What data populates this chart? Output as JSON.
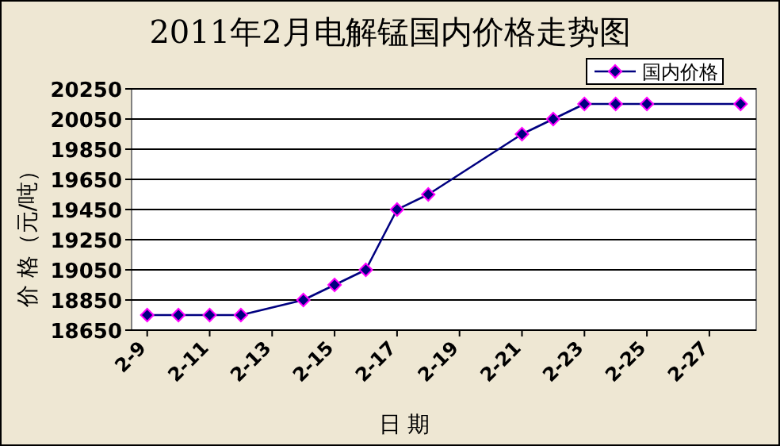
{
  "chart_data": {
    "type": "line",
    "title": "2011年2月电解锰国内价格走势图",
    "xlabel": "日    期",
    "ylabel": "价  格（元/吨）",
    "x": [
      "2011-02-09",
      "2011-02-10",
      "2011-02-11",
      "2011-02-12",
      "2011-02-14",
      "2011-02-15",
      "2011-02-16",
      "2011-02-17",
      "2011-02-18",
      "2011-02-21",
      "2011-02-22",
      "2011-02-23",
      "2011-02-24",
      "2011-02-25",
      "2011-02-28"
    ],
    "series": [
      {
        "name": "国内价格",
        "color": "#000080",
        "values": [
          18750,
          18750,
          18750,
          18750,
          18850,
          18950,
          19050,
          19450,
          19550,
          19950,
          20050,
          20150,
          20150,
          20150,
          20150
        ]
      }
    ],
    "xlim": [
      "2011-02-08T12:00",
      "2011-02-28T12:00"
    ],
    "xticks": [
      {
        "value": "2011-02-09",
        "label": "2-9"
      },
      {
        "value": "2011-02-11",
        "label": "2-11"
      },
      {
        "value": "2011-02-13",
        "label": "2-13"
      },
      {
        "value": "2011-02-15",
        "label": "2-15"
      },
      {
        "value": "2011-02-17",
        "label": "2-17"
      },
      {
        "value": "2011-02-19",
        "label": "2-19"
      },
      {
        "value": "2011-02-21",
        "label": "2-21"
      },
      {
        "value": "2011-02-23",
        "label": "2-23"
      },
      {
        "value": "2011-02-25",
        "label": "2-25"
      },
      {
        "value": "2011-02-27",
        "label": "2-27"
      }
    ],
    "ylim": [
      18650,
      20250
    ],
    "yticks": [
      18650,
      18850,
      19050,
      19250,
      19450,
      19650,
      19850,
      20050,
      20250
    ],
    "grid": "y",
    "legend": "top right",
    "marker": "diamond"
  }
}
